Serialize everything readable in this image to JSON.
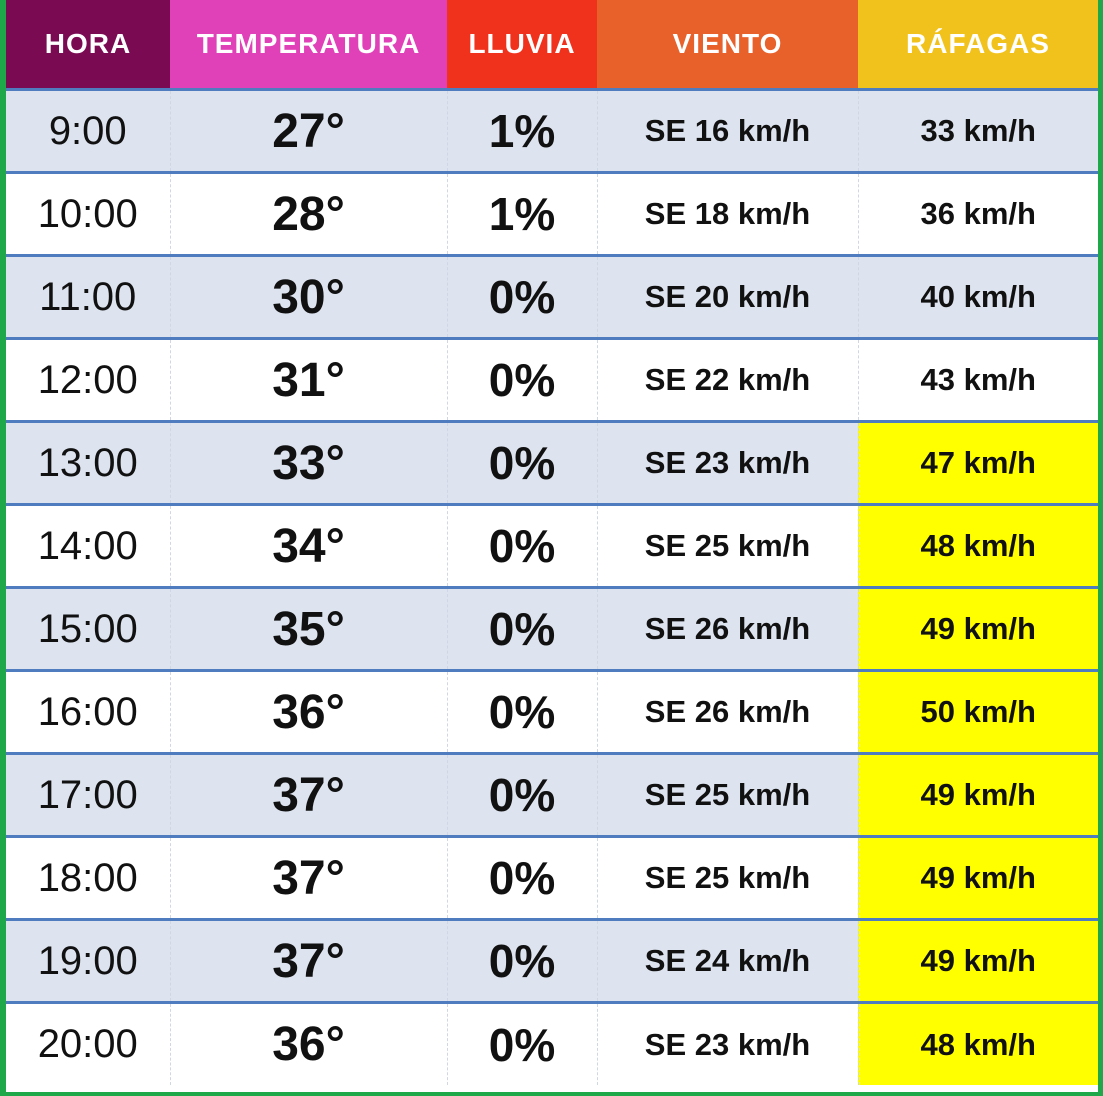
{
  "colors": {
    "hora_header": "#7a0a52",
    "temperatura_header": "#e040b8",
    "lluvia_header": "#f0321c",
    "viento_header": "#e8602a",
    "rafagas_header": "#f2c21c",
    "row_alt": "#dde4ef",
    "gust_highlight": "#ffff00",
    "border": "#1fa84a"
  },
  "headers": {
    "hora": "HORA",
    "temperatura": "TEMPERATURA",
    "lluvia": "LLUVIA",
    "viento": "VIENTO",
    "rafagas": "RÁFAGAS"
  },
  "rows": [
    {
      "hora": "9:00",
      "temperatura": "27°",
      "lluvia": "1%",
      "viento": "SE 16 km/h",
      "rafagas": "33 km/h",
      "highlight": false
    },
    {
      "hora": "10:00",
      "temperatura": "28°",
      "lluvia": "1%",
      "viento": "SE 18 km/h",
      "rafagas": "36 km/h",
      "highlight": false
    },
    {
      "hora": "11:00",
      "temperatura": "30°",
      "lluvia": "0%",
      "viento": "SE 20 km/h",
      "rafagas": "40 km/h",
      "highlight": false
    },
    {
      "hora": "12:00",
      "temperatura": "31°",
      "lluvia": "0%",
      "viento": "SE 22 km/h",
      "rafagas": "43 km/h",
      "highlight": false
    },
    {
      "hora": "13:00",
      "temperatura": "33°",
      "lluvia": "0%",
      "viento": "SE 23 km/h",
      "rafagas": "47 km/h",
      "highlight": true
    },
    {
      "hora": "14:00",
      "temperatura": "34°",
      "lluvia": "0%",
      "viento": "SE 25 km/h",
      "rafagas": "48 km/h",
      "highlight": true
    },
    {
      "hora": "15:00",
      "temperatura": "35°",
      "lluvia": "0%",
      "viento": "SE 26 km/h",
      "rafagas": "49 km/h",
      "highlight": true
    },
    {
      "hora": "16:00",
      "temperatura": "36°",
      "lluvia": "0%",
      "viento": "SE 26 km/h",
      "rafagas": "50 km/h",
      "highlight": true
    },
    {
      "hora": "17:00",
      "temperatura": "37°",
      "lluvia": "0%",
      "viento": "SE 25 km/h",
      "rafagas": "49 km/h",
      "highlight": true
    },
    {
      "hora": "18:00",
      "temperatura": "37°",
      "lluvia": "0%",
      "viento": "SE 25 km/h",
      "rafagas": "49 km/h",
      "highlight": true
    },
    {
      "hora": "19:00",
      "temperatura": "37°",
      "lluvia": "0%",
      "viento": "SE 24 km/h",
      "rafagas": "49 km/h",
      "highlight": true
    },
    {
      "hora": "20:00",
      "temperatura": "36°",
      "lluvia": "0%",
      "viento": "SE 23 km/h",
      "rafagas": "48 km/h",
      "highlight": true
    }
  ]
}
